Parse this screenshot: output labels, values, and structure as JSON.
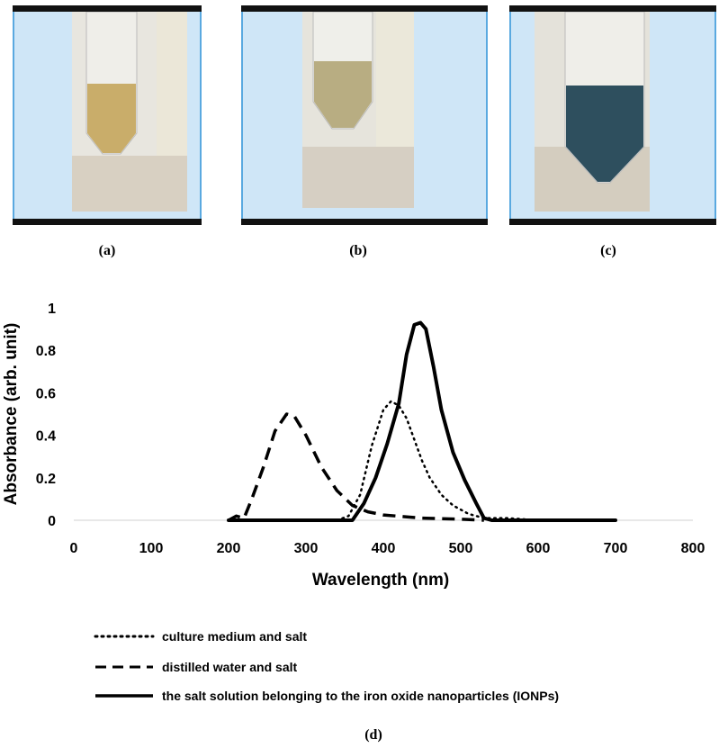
{
  "photos": [
    {
      "caption": "(a)",
      "liquid": "#c9ad6a",
      "liquid_level": 0.45
    },
    {
      "caption": "(b)",
      "liquid": "#b8ad82",
      "liquid_level": 0.55
    },
    {
      "caption": "(c)",
      "liquid": "#2e4f5e",
      "liquid_level": 0.6
    }
  ],
  "figure_caption": "(d)",
  "chart_data": {
    "type": "line",
    "xlabel": "Wavelength (nm)",
    "ylabel": "Absorbance (arb. unit)",
    "xlim": [
      0,
      800
    ],
    "ylim": [
      0,
      1
    ],
    "x_ticks": [
      "0",
      "100",
      "200",
      "300",
      "400",
      "500",
      "600",
      "700",
      "800"
    ],
    "y_ticks": [
      "0",
      "0.2",
      "0.4",
      "0.6",
      "0.8",
      "1"
    ],
    "grid": false,
    "legend_position": "bottom",
    "series": [
      {
        "name": "culture medium and salt",
        "style": "dotted",
        "points": [
          [
            340,
            0
          ],
          [
            355,
            0.02
          ],
          [
            370,
            0.12
          ],
          [
            385,
            0.35
          ],
          [
            400,
            0.52
          ],
          [
            410,
            0.56
          ],
          [
            420,
            0.54
          ],
          [
            430,
            0.48
          ],
          [
            440,
            0.38
          ],
          [
            450,
            0.28
          ],
          [
            460,
            0.2
          ],
          [
            475,
            0.12
          ],
          [
            490,
            0.07
          ],
          [
            510,
            0.03
          ],
          [
            530,
            0.01
          ],
          [
            560,
            0.01
          ],
          [
            600,
            0
          ]
        ]
      },
      {
        "name": "distilled water and salt",
        "style": "dashed",
        "points": [
          [
            200,
            0
          ],
          [
            210,
            0.02
          ],
          [
            220,
            0.01
          ],
          [
            230,
            0.1
          ],
          [
            245,
            0.25
          ],
          [
            260,
            0.42
          ],
          [
            275,
            0.5
          ],
          [
            285,
            0.49
          ],
          [
            300,
            0.4
          ],
          [
            320,
            0.25
          ],
          [
            340,
            0.14
          ],
          [
            360,
            0.07
          ],
          [
            380,
            0.04
          ],
          [
            400,
            0.025
          ],
          [
            450,
            0.01
          ],
          [
            500,
            0.005
          ],
          [
            530,
            0
          ]
        ]
      },
      {
        "name": "the salt solution belonging to the iron oxide nanoparticles (IONPs)",
        "style": "solid",
        "points": [
          [
            200,
            0
          ],
          [
            360,
            0
          ],
          [
            375,
            0.08
          ],
          [
            390,
            0.2
          ],
          [
            405,
            0.36
          ],
          [
            420,
            0.55
          ],
          [
            430,
            0.78
          ],
          [
            440,
            0.92
          ],
          [
            448,
            0.93
          ],
          [
            455,
            0.9
          ],
          [
            465,
            0.72
          ],
          [
            475,
            0.52
          ],
          [
            490,
            0.32
          ],
          [
            505,
            0.19
          ],
          [
            520,
            0.08
          ],
          [
            530,
            0.01
          ],
          [
            540,
            0
          ],
          [
            700,
            0
          ]
        ]
      }
    ]
  }
}
